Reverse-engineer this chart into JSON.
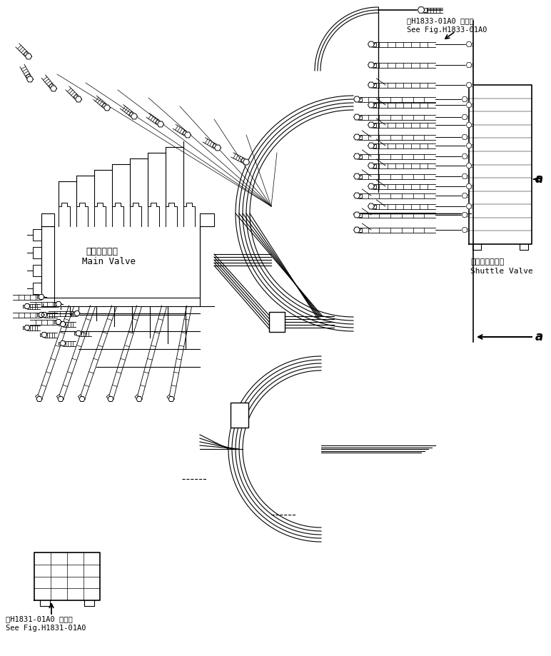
{
  "background_color": "#ffffff",
  "line_color": "#000000",
  "top_right_label1": "第H1833-01A0 図参照",
  "top_right_label2": "See Fig.H1833-01A0",
  "bottom_left_label1": "第H1831-01A0 図参照",
  "bottom_left_label2": "See Fig.H1831-01A0",
  "main_valve_ja": "メインバルブ",
  "main_valve_en": "Main Valve",
  "shuttle_valve_ja": "シャトルバルブ",
  "shuttle_valve_en": "Shuttle Valve",
  "label_a": "a",
  "fig_width": 7.72,
  "fig_height": 9.19,
  "dpi": 100
}
